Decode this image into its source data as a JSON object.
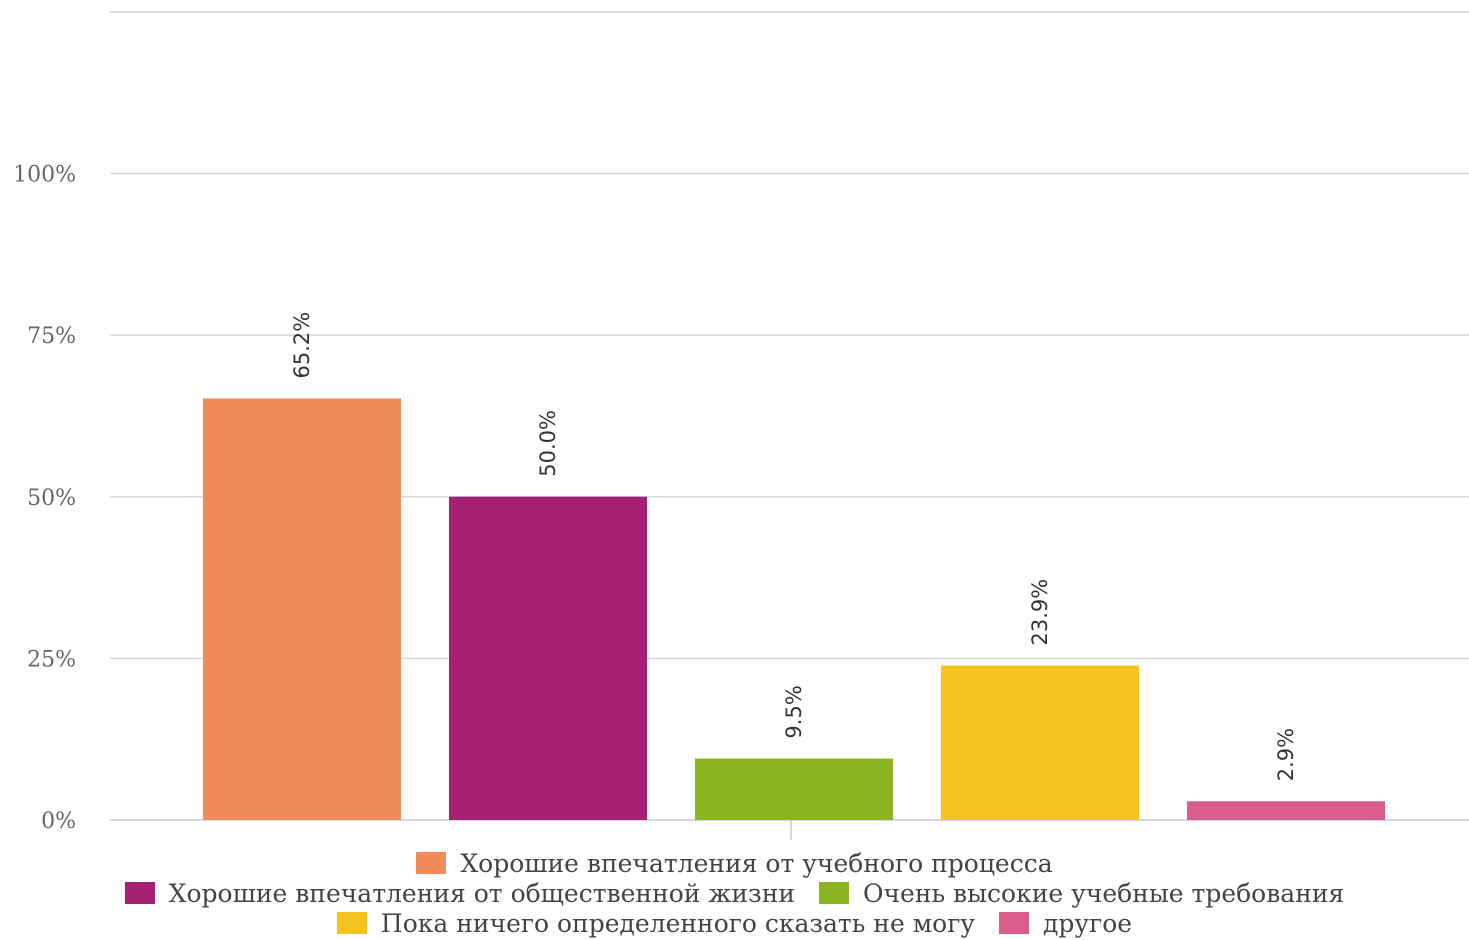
{
  "chart_data": {
    "type": "bar",
    "categories": [
      "Хорошие впечатления от учебного процесса",
      "Хорошие впечатления от общественной жизни",
      "Очень высокие учебные требования",
      "Пока ничего определенного сказать не могу",
      "другое"
    ],
    "values": [
      65.2,
      50.0,
      9.5,
      23.9,
      2.9
    ],
    "data_labels": [
      "65.2%",
      "50.0%",
      "9.5%",
      "23.9%",
      "2.9%"
    ],
    "colors": [
      "#F28B5B",
      "#A61F73",
      "#8AB521",
      "#F7C11F",
      "#D95C8A"
    ],
    "ylim": [
      0,
      125
    ],
    "yticks": [
      {
        "value": 0,
        "label": "0%"
      },
      {
        "value": 25,
        "label": "25%"
      },
      {
        "value": 50,
        "label": "50%"
      },
      {
        "value": 75,
        "label": "75%"
      },
      {
        "value": 100,
        "label": "100%"
      }
    ],
    "grid": true,
    "legend_position": "bottom"
  },
  "legend": {
    "rows": [
      [
        {
          "index": 0,
          "label": "Хорошие впечатления от учебного процесса"
        }
      ],
      [
        {
          "index": 1,
          "label": "Хорошие впечатления от общественной жизни"
        },
        {
          "index": 2,
          "label": "Очень высокие учебные требования"
        }
      ],
      [
        {
          "index": 3,
          "label": "Пока ничего определенного сказать не могу"
        },
        {
          "index": 4,
          "label": "другое"
        }
      ]
    ]
  }
}
